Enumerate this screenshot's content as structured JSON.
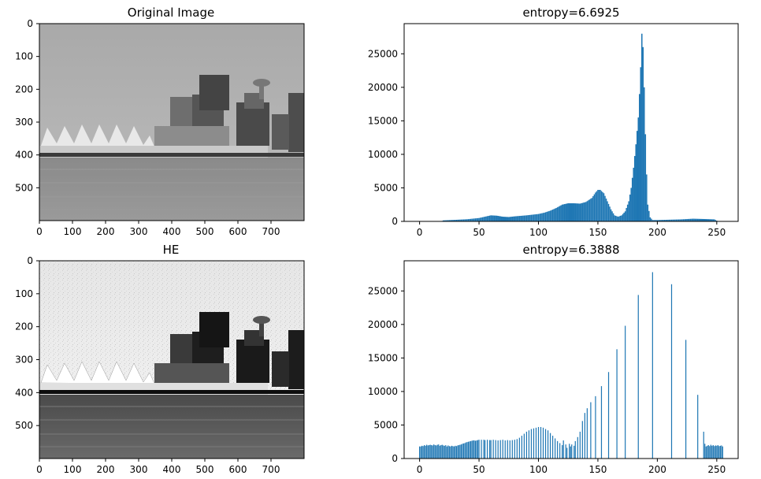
{
  "figure": {
    "background": "#ffffff",
    "bar_color": "#1f77b4"
  },
  "chart_data": [
    {
      "type": "image",
      "title": "Original Image",
      "xticks": [
        "0",
        "100",
        "200",
        "300",
        "400",
        "500",
        "600",
        "700"
      ],
      "yticks": [
        "0",
        "100",
        "200",
        "300",
        "400",
        "500"
      ],
      "xlim": [
        0,
        800
      ],
      "ylim": [
        600,
        0
      ],
      "content": "grayscale photograph of a waterfront skyline with white sail-shaped roofs, a rotating-restaurant tower and calm water"
    },
    {
      "type": "bar",
      "title": "entropy=6.6925",
      "xlim": [
        -13,
        268
      ],
      "ylim": [
        0,
        29500
      ],
      "xticks": [
        "0",
        "50",
        "100",
        "150",
        "200",
        "250"
      ],
      "yticks": [
        "0",
        "5000",
        "10000",
        "15000",
        "20000",
        "25000"
      ],
      "curve_points": [
        [
          0,
          0
        ],
        [
          18,
          0
        ],
        [
          20,
          150
        ],
        [
          30,
          230
        ],
        [
          40,
          320
        ],
        [
          50,
          500
        ],
        [
          55,
          700
        ],
        [
          60,
          900
        ],
        [
          65,
          850
        ],
        [
          70,
          700
        ],
        [
          75,
          650
        ],
        [
          80,
          750
        ],
        [
          90,
          900
        ],
        [
          100,
          1100
        ],
        [
          105,
          1300
        ],
        [
          110,
          1600
        ],
        [
          115,
          2000
        ],
        [
          120,
          2500
        ],
        [
          125,
          2700
        ],
        [
          130,
          2700
        ],
        [
          135,
          2650
        ],
        [
          140,
          2900
        ],
        [
          145,
          3500
        ],
        [
          148,
          4300
        ],
        [
          150,
          4700
        ],
        [
          152,
          4700
        ],
        [
          155,
          4200
        ],
        [
          158,
          3000
        ],
        [
          161,
          1800
        ],
        [
          164,
          900
        ],
        [
          167,
          700
        ],
        [
          170,
          900
        ],
        [
          173,
          1500
        ],
        [
          176,
          3000
        ],
        [
          178,
          5000
        ],
        [
          180,
          8000
        ],
        [
          182,
          11500
        ],
        [
          184,
          15500
        ],
        [
          185,
          19000
        ],
        [
          186,
          23000
        ],
        [
          187,
          28000
        ],
        [
          188,
          26000
        ],
        [
          189,
          20000
        ],
        [
          190,
          13000
        ],
        [
          191,
          7000
        ],
        [
          192,
          2500
        ],
        [
          194,
          600
        ],
        [
          196,
          200
        ],
        [
          200,
          200
        ],
        [
          210,
          250
        ],
        [
          220,
          300
        ],
        [
          230,
          400
        ],
        [
          240,
          350
        ],
        [
          248,
          300
        ],
        [
          250,
          100
        ],
        [
          252,
          0
        ],
        [
          255,
          0
        ]
      ]
    },
    {
      "type": "image",
      "title": "HE",
      "xticks": [
        "0",
        "100",
        "200",
        "300",
        "400",
        "500",
        "600",
        "700"
      ],
      "yticks": [
        "0",
        "100",
        "200",
        "300",
        "400",
        "500"
      ],
      "xlim": [
        0,
        800
      ],
      "ylim": [
        600,
        0
      ],
      "content": "contrast-enhanced version of the same skyline photograph with darker buildings and brighter, noisier sky"
    },
    {
      "type": "bar",
      "title": "entropy=6.3888",
      "xlim": [
        -13,
        268
      ],
      "ylim": [
        0,
        29500
      ],
      "xticks": [
        "0",
        "50",
        "100",
        "150",
        "200",
        "250"
      ],
      "yticks": [
        "0",
        "5000",
        "10000",
        "15000",
        "20000",
        "25000"
      ],
      "bins": [
        [
          0,
          1800
        ],
        [
          1,
          1800
        ],
        [
          2,
          1900
        ],
        [
          3,
          1850
        ],
        [
          4,
          2000
        ],
        [
          5,
          1900
        ],
        [
          6,
          2050
        ],
        [
          7,
          1950
        ],
        [
          8,
          2000
        ],
        [
          9,
          2050
        ],
        [
          10,
          2000
        ],
        [
          11,
          1950
        ],
        [
          12,
          2100
        ],
        [
          13,
          2000
        ],
        [
          14,
          1950
        ],
        [
          15,
          2050
        ],
        [
          16,
          2100
        ],
        [
          17,
          1900
        ],
        [
          18,
          2000
        ],
        [
          19,
          2050
        ],
        [
          20,
          1950
        ],
        [
          21,
          1900
        ],
        [
          22,
          2000
        ],
        [
          23,
          1800
        ],
        [
          24,
          1950
        ],
        [
          25,
          1850
        ],
        [
          26,
          1800
        ],
        [
          27,
          1900
        ],
        [
          28,
          1850
        ],
        [
          29,
          1800
        ],
        [
          30,
          1900
        ],
        [
          31,
          1850
        ],
        [
          32,
          1950
        ],
        [
          33,
          2000
        ],
        [
          34,
          2050
        ],
        [
          35,
          2100
        ],
        [
          36,
          2200
        ],
        [
          37,
          2250
        ],
        [
          38,
          2300
        ],
        [
          39,
          2400
        ],
        [
          40,
          2450
        ],
        [
          41,
          2500
        ],
        [
          42,
          2550
        ],
        [
          43,
          2600
        ],
        [
          44,
          2650
        ],
        [
          45,
          2700
        ],
        [
          46,
          2700
        ],
        [
          47,
          2650
        ],
        [
          48,
          2700
        ],
        [
          49,
          2750
        ],
        [
          50,
          2800
        ],
        [
          52,
          2800
        ],
        [
          54,
          2800
        ],
        [
          55,
          2750
        ],
        [
          57,
          2800
        ],
        [
          59,
          2750
        ],
        [
          60,
          2750
        ],
        [
          62,
          2800
        ],
        [
          64,
          2750
        ],
        [
          66,
          2700
        ],
        [
          68,
          2750
        ],
        [
          70,
          2800
        ],
        [
          72,
          2700
        ],
        [
          74,
          2750
        ],
        [
          76,
          2700
        ],
        [
          78,
          2750
        ],
        [
          80,
          2800
        ],
        [
          82,
          2900
        ],
        [
          84,
          3100
        ],
        [
          86,
          3400
        ],
        [
          88,
          3700
        ],
        [
          90,
          4000
        ],
        [
          92,
          4200
        ],
        [
          94,
          4400
        ],
        [
          96,
          4500
        ],
        [
          98,
          4600
        ],
        [
          100,
          4700
        ],
        [
          102,
          4700
        ],
        [
          104,
          4600
        ],
        [
          106,
          4400
        ],
        [
          108,
          4200
        ],
        [
          110,
          3800
        ],
        [
          112,
          3400
        ],
        [
          114,
          3000
        ],
        [
          116,
          2600
        ],
        [
          118,
          2300
        ],
        [
          120,
          2000
        ],
        [
          121,
          2700
        ],
        [
          123,
          2100
        ],
        [
          124,
          1600
        ],
        [
          126,
          2200
        ],
        [
          127,
          1800
        ],
        [
          128,
          2100
        ],
        [
          130,
          1900
        ],
        [
          131,
          2600
        ],
        [
          133,
          3200
        ],
        [
          135,
          4000
        ],
        [
          137,
          5600
        ],
        [
          139,
          6800
        ],
        [
          141,
          7500
        ],
        [
          144,
          8400
        ],
        [
          148,
          9300
        ],
        [
          153,
          10800
        ],
        [
          159,
          12900
        ],
        [
          166,
          16300
        ],
        [
          173,
          19800
        ],
        [
          184,
          24400
        ],
        [
          196,
          27800
        ],
        [
          212,
          26000
        ],
        [
          224,
          17700
        ],
        [
          234,
          9500
        ],
        [
          239,
          4000
        ],
        [
          240,
          2200
        ],
        [
          241,
          1800
        ],
        [
          242,
          1900
        ],
        [
          243,
          2000
        ],
        [
          244,
          1850
        ],
        [
          245,
          2050
        ],
        [
          246,
          1900
        ],
        [
          247,
          2000
        ],
        [
          248,
          1850
        ],
        [
          249,
          1950
        ],
        [
          250,
          1900
        ],
        [
          251,
          2000
        ],
        [
          252,
          1850
        ],
        [
          253,
          1900
        ],
        [
          254,
          1950
        ],
        [
          255,
          1800
        ]
      ]
    }
  ]
}
